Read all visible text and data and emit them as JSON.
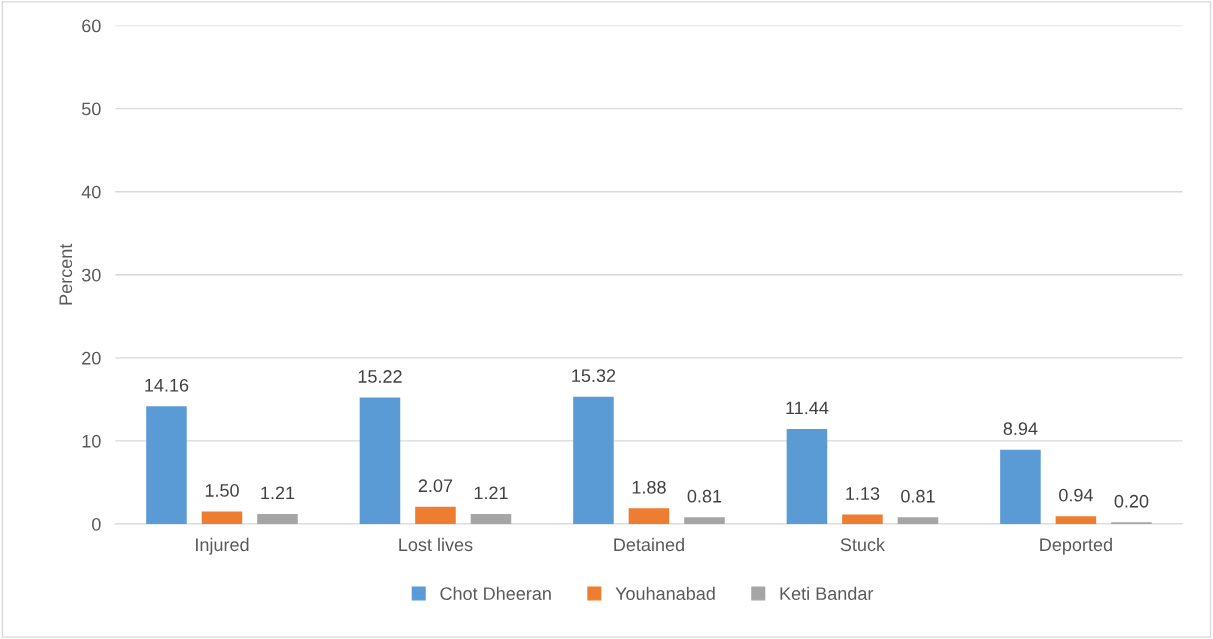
{
  "chart_data": {
    "type": "bar",
    "ylabel": "Percent",
    "categories": [
      "Injured",
      "Lost lives",
      "Detained",
      "Stuck",
      "Deported"
    ],
    "series": [
      {
        "name": "Chot Dheeran",
        "color": "#5b9bd5",
        "values": [
          14.16,
          15.22,
          15.32,
          11.44,
          8.94
        ],
        "value_labels": [
          "14.16",
          "15.22",
          "15.32",
          "11.44",
          "8.94"
        ]
      },
      {
        "name": "Youhanabad",
        "color": "#ed7d31",
        "values": [
          1.5,
          2.07,
          1.88,
          1.13,
          0.94
        ],
        "value_labels": [
          "1.50",
          "2.07",
          "1.88",
          "1.13",
          "0.94"
        ]
      },
      {
        "name": "Keti Bandar",
        "color": "#a5a5a5",
        "values": [
          1.21,
          1.21,
          0.81,
          0.81,
          0.2
        ],
        "value_labels": [
          "1.21",
          "1.21",
          "0.81",
          "0.81",
          "0.20"
        ]
      }
    ],
    "ylim": [
      0,
      60
    ],
    "yticks": [
      0,
      10,
      20,
      30,
      40,
      50,
      60
    ],
    "grid": "y",
    "legend": "bottom"
  }
}
